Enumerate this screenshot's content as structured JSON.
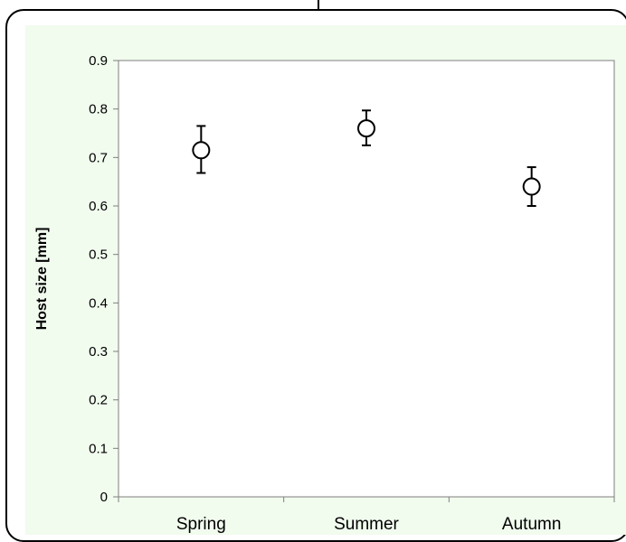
{
  "chart_data": {
    "type": "scatter",
    "title": "",
    "xlabel": "",
    "ylabel": "Host size [mm]",
    "categories": [
      "Spring",
      "Summer",
      "Autumn"
    ],
    "values": [
      0.715,
      0.76,
      0.64
    ],
    "error_low": [
      0.668,
      0.725,
      0.6
    ],
    "error_high": [
      0.765,
      0.797,
      0.68
    ],
    "ylim": [
      0,
      0.9
    ],
    "yticks": [
      0,
      0.1,
      0.2,
      0.3,
      0.4,
      0.5,
      0.6,
      0.7,
      0.8,
      0.9
    ],
    "ytick_labels": [
      "0",
      "0.1",
      "0.2",
      "0.3",
      "0.4",
      "0.5",
      "0.6",
      "0.7",
      "0.8",
      "0.9"
    ],
    "grid": false,
    "legend": "none",
    "marker": "open-circle",
    "colors": {
      "panel_background": "#f1fbee",
      "plot_background": "#ffffff",
      "axis": "#7f7f7f",
      "marker": "#000000"
    }
  }
}
